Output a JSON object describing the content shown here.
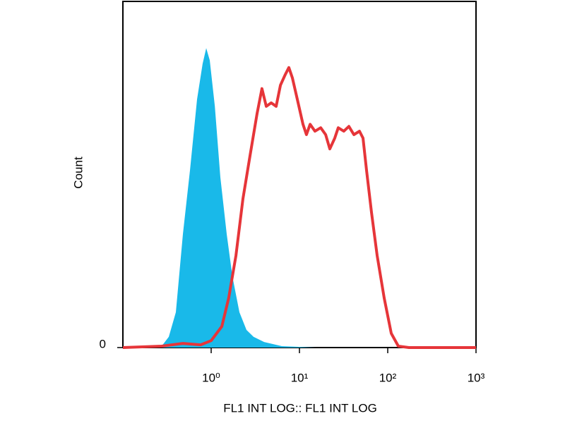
{
  "chart_data": {
    "type": "line",
    "xscale": "log",
    "xlabel": "FL1 INT LOG:: FL1 INT LOG",
    "ylabel": "Count",
    "xlim": [
      0.1,
      1000
    ],
    "ylim": [
      0,
      100
    ],
    "xticks": [
      {
        "value": 1,
        "label": "10⁰"
      },
      {
        "value": 10,
        "label": "10¹"
      },
      {
        "value": 100,
        "label": "10²"
      },
      {
        "value": 1000,
        "label": "10³"
      }
    ],
    "yticks": [
      0
    ],
    "series": [
      {
        "color": "#19b9e9",
        "fill": true,
        "x": [
          0.1,
          0.275,
          0.331,
          0.398,
          0.479,
          0.575,
          0.692,
          0.8,
          0.879,
          0.963,
          1.1,
          1.27,
          1.5,
          1.74,
          2.09,
          2.51,
          3.02,
          3.98,
          6.31,
          15.8,
          1000
        ],
        "values": [
          0,
          0.4,
          3.1,
          10.2,
          32.8,
          51.2,
          71.7,
          82,
          86.5,
          83,
          69.7,
          49.2,
          32.8,
          20.5,
          10.2,
          5.1,
          3.1,
          1.6,
          0.4,
          0,
          0
        ]
      },
      {
        "color": "#e63539",
        "fill": false,
        "x": [
          0.1,
          0.275,
          0.479,
          0.759,
          1,
          1.32,
          1.58,
          1.91,
          2.29,
          2.75,
          3.31,
          3.76,
          4.21,
          4.79,
          5.45,
          6.09,
          6.92,
          7.59,
          8.32,
          9.46,
          10.96,
          12.0,
          13.2,
          15.0,
          17.4,
          19.8,
          22.1,
          25.1,
          27.5,
          31.8,
          36.3,
          41.4,
          47.9,
          52.5,
          57.5,
          65.6,
          75.9,
          91.2,
          109.6,
          131.8,
          173.8,
          1000
        ],
        "values": [
          0,
          0.4,
          1.2,
          0.8,
          2.0,
          6.1,
          14.3,
          26.6,
          43.0,
          55.3,
          67.6,
          74.8,
          69.7,
          70.7,
          69.7,
          75.8,
          78.9,
          80.9,
          77.9,
          71.7,
          64.5,
          61.5,
          64.5,
          62.5,
          63.5,
          61.5,
          57.4,
          60.5,
          63.5,
          62.5,
          63.9,
          61.5,
          62.5,
          60.5,
          51.2,
          38.9,
          26.6,
          14.3,
          4.1,
          0.4,
          0,
          0
        ]
      }
    ]
  }
}
